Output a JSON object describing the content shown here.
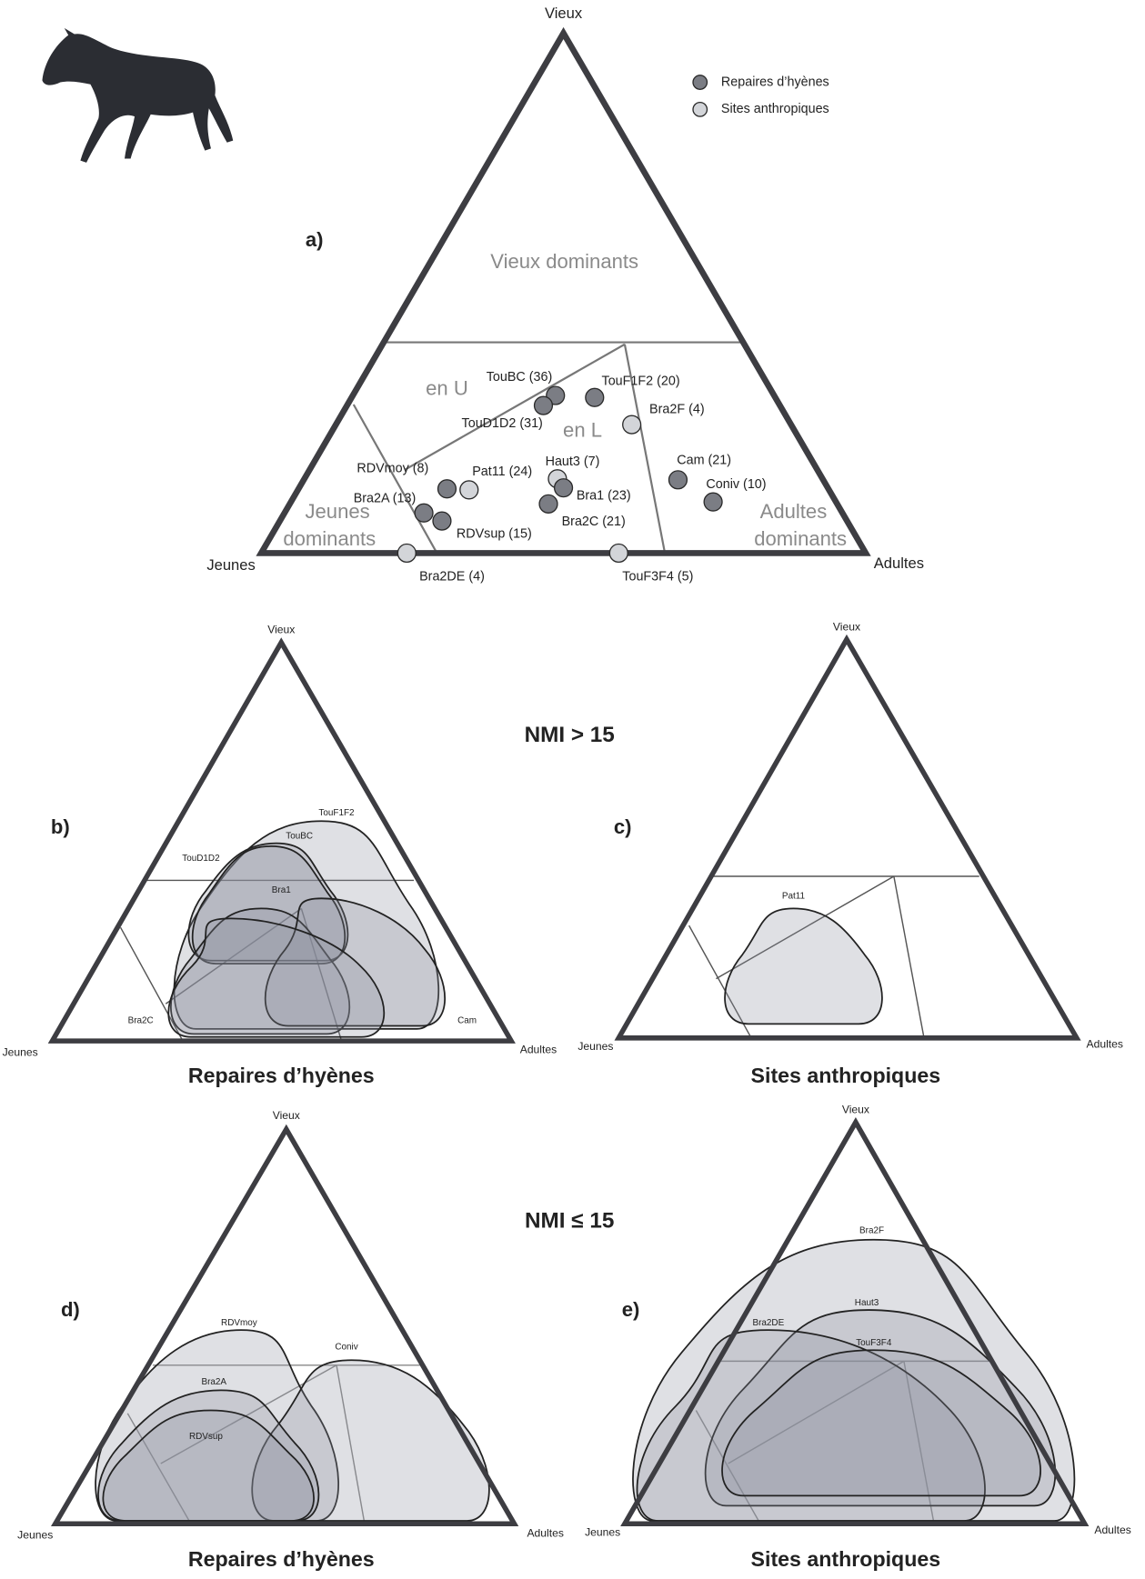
{
  "legend": [
    "Repaires d’hyènes",
    "Sites anthropiques"
  ],
  "headings": [
    "NMI > 15",
    "NMI ≤ 15"
  ],
  "panels": [
    {
      "letter": "a)",
      "vertices": [
        "Vieux",
        "Jeunes",
        "Adultes"
      ],
      "regions": [
        "Vieux dominants",
        "en U",
        "en L",
        "Jeunes",
        "dominants",
        "Adultes",
        "dominants"
      ],
      "points": [
        {
          "label": "TouBC (36)",
          "group": "Repaires d’hyènes"
        },
        {
          "label": "TouD1D2 (31)",
          "group": "Repaires d’hyènes"
        },
        {
          "label": "TouF1F2 (20)",
          "group": "Repaires d’hyènes"
        },
        {
          "label": "Bra2F (4)",
          "group": "Sites anthropiques"
        },
        {
          "label": "Cam (21)",
          "group": "Repaires d’hyènes"
        },
        {
          "label": "Coniv (10)",
          "group": "Repaires d’hyènes"
        },
        {
          "label": "Haut3 (7)",
          "group": "Sites anthropiques"
        },
        {
          "label": "Bra1 (23)",
          "group": "Repaires d’hyènes"
        },
        {
          "label": "Bra2C (21)",
          "group": "Repaires d’hyènes"
        },
        {
          "label": "RDVmoy (8)",
          "group": "Repaires d’hyènes"
        },
        {
          "label": "Pat11 (24)",
          "group": "Sites anthropiques"
        },
        {
          "label": "Bra2A (13)",
          "group": "Repaires d’hyènes"
        },
        {
          "label": "RDVsup (15)",
          "group": "Repaires d’hyènes"
        },
        {
          "label": "Bra2DE (4)",
          "group": "Sites anthropiques"
        },
        {
          "label": "TouF3F4 (5)",
          "group": "Sites anthropiques"
        }
      ]
    },
    {
      "letter": "b)",
      "vertices": [
        "Vieux",
        "Jeunes",
        "Adultes"
      ],
      "caption": "Repaires d’hyènes",
      "blobs": [
        "TouF1F2",
        "TouBC",
        "TouD1D2",
        "Bra1",
        "Cam",
        "Bra2C"
      ]
    },
    {
      "letter": "c)",
      "vertices": [
        "Vieux",
        "Jeunes",
        "Adultes"
      ],
      "caption": "Sites anthropiques",
      "blobs": [
        "Pat11"
      ]
    },
    {
      "letter": "d)",
      "vertices": [
        "Vieux",
        "Jeunes",
        "Adultes"
      ],
      "caption": "Repaires d’hyènes",
      "blobs": [
        "RDVmoy",
        "Coniv",
        "Bra2A",
        "RDVsup"
      ]
    },
    {
      "letter": "e)",
      "vertices": [
        "Vieux",
        "Jeunes",
        "Adultes"
      ],
      "caption": "Sites anthropiques",
      "blobs": [
        "Bra2F",
        "Haut3",
        "Bra2DE",
        "TouF3F4"
      ]
    }
  ]
}
